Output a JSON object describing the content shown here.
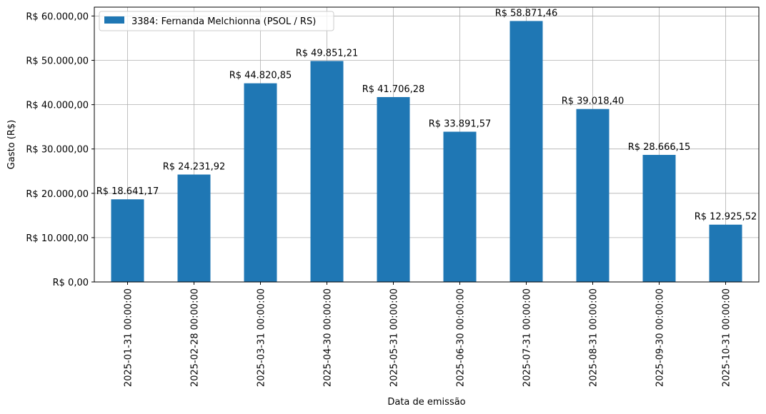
{
  "chart_data": {
    "type": "bar",
    "xlabel": "Data de emissão",
    "ylabel": "Gasto (R$)",
    "ylim": [
      0,
      62000
    ],
    "yticks": [
      0,
      10000,
      20000,
      30000,
      40000,
      50000,
      60000
    ],
    "ytick_labels": [
      "R$ 0,00",
      "R$ 10.000,00",
      "R$ 20.000,00",
      "R$ 30.000,00",
      "R$ 40.000,00",
      "R$ 50.000,00",
      "R$ 60.000,00"
    ],
    "grid": true,
    "legend_position": "top-left",
    "categories": [
      "2025-01-31 00:00:00",
      "2025-02-28 00:00:00",
      "2025-03-31 00:00:00",
      "2025-04-30 00:00:00",
      "2025-05-31 00:00:00",
      "2025-06-30 00:00:00",
      "2025-07-31 00:00:00",
      "2025-08-31 00:00:00",
      "2025-09-30 00:00:00",
      "2025-10-31 00:00:00"
    ],
    "series": [
      {
        "name": "3384: Fernanda Melchionna (PSOL / RS)",
        "color": "#1f77b4",
        "values": [
          18641.17,
          24231.92,
          44820.85,
          49851.21,
          41706.28,
          33891.57,
          58871.46,
          39018.4,
          28666.15,
          12925.52
        ],
        "labels": [
          "R$ 18.641,17",
          "R$ 24.231,92",
          "R$ 44.820,85",
          "R$ 49.851,21",
          "R$ 41.706,28",
          "R$ 33.891,57",
          "R$ 58.871,46",
          "R$ 39.018,40",
          "R$ 28.666,15",
          "R$ 12.925,52"
        ]
      }
    ]
  }
}
